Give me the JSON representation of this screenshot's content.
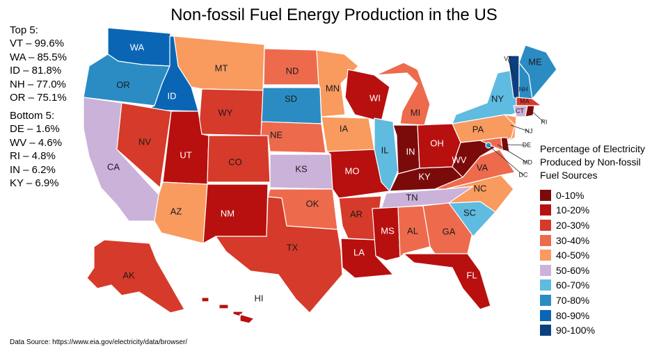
{
  "title": "Non-fossil Fuel Energy Production in the US",
  "top5": {
    "heading": "Top 5:",
    "items": [
      "VT – 99.6%",
      "WA – 85.5%",
      "ID – 81.8%",
      "NH – 77.0%",
      "OR – 75.1%"
    ]
  },
  "bottom5": {
    "heading": "Bottom 5:",
    "items": [
      "DE – 1.6%",
      "WV – 4.6%",
      "RI – 4.8%",
      "IN – 6.2%",
      "KY – 6.9%"
    ]
  },
  "legend": {
    "title_lines": [
      "Percentage of Electricity",
      "Produced by Non-fossil",
      "Fuel Sources"
    ],
    "bins": [
      {
        "label": "0-10%",
        "color": "#7b0b0b"
      },
      {
        "label": "10-20%",
        "color": "#b8100f"
      },
      {
        "label": "20-30%",
        "color": "#d63a2a"
      },
      {
        "label": "30-40%",
        "color": "#ee6a4d"
      },
      {
        "label": "40-50%",
        "color": "#f99a5f"
      },
      {
        "label": "50-60%",
        "color": "#cbb2d9"
      },
      {
        "label": "60-70%",
        "color": "#5fbbe0"
      },
      {
        "label": "70-80%",
        "color": "#2b8cc4"
      },
      {
        "label": "80-90%",
        "color": "#0a66b5"
      },
      {
        "label": "90-100%",
        "color": "#0c3f7f"
      }
    ]
  },
  "states": [
    {
      "abbr": "WA",
      "bin": 8
    },
    {
      "abbr": "OR",
      "bin": 7
    },
    {
      "abbr": "CA",
      "bin": 5
    },
    {
      "abbr": "ID",
      "bin": 8
    },
    {
      "abbr": "NV",
      "bin": 2
    },
    {
      "abbr": "MT",
      "bin": 4
    },
    {
      "abbr": "WY",
      "bin": 2
    },
    {
      "abbr": "UT",
      "bin": 1
    },
    {
      "abbr": "AZ",
      "bin": 4
    },
    {
      "abbr": "CO",
      "bin": 2
    },
    {
      "abbr": "NM",
      "bin": 1
    },
    {
      "abbr": "ND",
      "bin": 3
    },
    {
      "abbr": "SD",
      "bin": 7
    },
    {
      "abbr": "NE",
      "bin": 3
    },
    {
      "abbr": "KS",
      "bin": 5
    },
    {
      "abbr": "OK",
      "bin": 3
    },
    {
      "abbr": "TX",
      "bin": 2
    },
    {
      "abbr": "MN",
      "bin": 4
    },
    {
      "abbr": "IA",
      "bin": 4
    },
    {
      "abbr": "MO",
      "bin": 1
    },
    {
      "abbr": "AR",
      "bin": 2
    },
    {
      "abbr": "LA",
      "bin": 1
    },
    {
      "abbr": "WI",
      "bin": 1
    },
    {
      "abbr": "IL",
      "bin": 6
    },
    {
      "abbr": "MI",
      "bin": 3
    },
    {
      "abbr": "IN",
      "bin": 0
    },
    {
      "abbr": "OH",
      "bin": 1
    },
    {
      "abbr": "KY",
      "bin": 0
    },
    {
      "abbr": "TN",
      "bin": 5
    },
    {
      "abbr": "MS",
      "bin": 1
    },
    {
      "abbr": "AL",
      "bin": 3
    },
    {
      "abbr": "GA",
      "bin": 3
    },
    {
      "abbr": "FL",
      "bin": 1
    },
    {
      "abbr": "SC",
      "bin": 6
    },
    {
      "abbr": "NC",
      "bin": 4
    },
    {
      "abbr": "VA",
      "bin": 3
    },
    {
      "abbr": "WV",
      "bin": 0
    },
    {
      "abbr": "PA",
      "bin": 4
    },
    {
      "abbr": "NY",
      "bin": 6
    },
    {
      "abbr": "VT",
      "bin": 9
    },
    {
      "abbr": "NH",
      "bin": 7
    },
    {
      "abbr": "ME",
      "bin": 7
    },
    {
      "abbr": "MA",
      "bin": 2
    },
    {
      "abbr": "CT",
      "bin": 5
    },
    {
      "abbr": "RI",
      "bin": 0
    },
    {
      "abbr": "NJ",
      "bin": 4
    },
    {
      "abbr": "DE",
      "bin": 0
    },
    {
      "abbr": "MD",
      "bin": 3
    },
    {
      "abbr": "DC",
      "bin": 7
    },
    {
      "abbr": "AK",
      "bin": 2
    },
    {
      "abbr": "HI",
      "bin": 1
    }
  ],
  "source": "Data Source: https://www.eia.gov/electricity/data/browser/"
}
